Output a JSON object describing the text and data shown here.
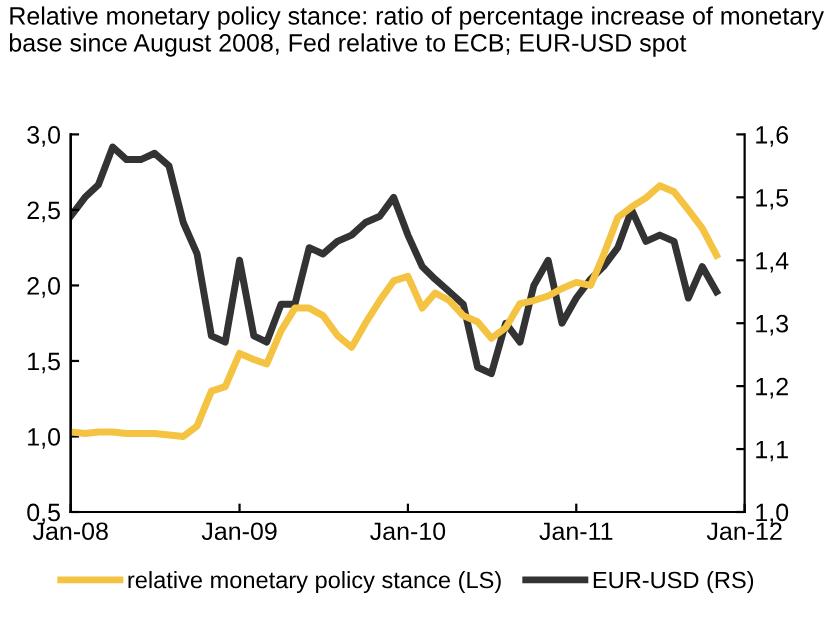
{
  "chart_data": {
    "type": "line",
    "title": "Relative monetary policy stance: ratio of percentage increase of monetary base since August 2008, Fed relative to ECB; EUR-USD spot",
    "x": [
      "2008-01",
      "2008-02",
      "2008-03",
      "2008-04",
      "2008-05",
      "2008-06",
      "2008-07",
      "2008-08",
      "2008-09",
      "2008-10",
      "2008-11",
      "2008-12",
      "2009-01",
      "2009-02",
      "2009-03",
      "2009-04",
      "2009-05",
      "2009-06",
      "2009-07",
      "2009-08",
      "2009-09",
      "2009-10",
      "2009-11",
      "2009-12",
      "2010-01",
      "2010-02",
      "2010-03",
      "2010-04",
      "2010-05",
      "2010-06",
      "2010-07",
      "2010-08",
      "2010-09",
      "2010-10",
      "2010-11",
      "2010-12",
      "2011-01",
      "2011-02",
      "2011-03",
      "2011-04",
      "2011-05",
      "2011-06",
      "2011-07",
      "2011-08",
      "2011-09",
      "2011-10",
      "2011-11"
    ],
    "series": [
      {
        "name": "relative monetary policy stance (LS)",
        "color": "#f5c342",
        "values": [
          1.03,
          1.02,
          1.03,
          1.03,
          1.02,
          1.02,
          1.02,
          1.01,
          1.0,
          1.07,
          1.3,
          1.33,
          1.55,
          1.51,
          1.48,
          1.7,
          1.85,
          1.85,
          1.8,
          1.67,
          1.59,
          1.75,
          1.9,
          2.03,
          2.06,
          1.85,
          1.95,
          1.9,
          1.8,
          1.76,
          1.65,
          1.72,
          1.88,
          1.9,
          1.93,
          1.98,
          2.02,
          2.0,
          2.2,
          2.45,
          2.52,
          2.58,
          2.66,
          2.62,
          2.5,
          2.38,
          2.2
        ]
      },
      {
        "name": "EUR-USD (RS)",
        "color": "#333333",
        "axis": "y2",
        "values": [
          1.47,
          1.5,
          1.52,
          1.58,
          1.56,
          1.56,
          1.57,
          1.55,
          1.46,
          1.41,
          1.28,
          1.27,
          1.4,
          1.28,
          1.27,
          1.33,
          1.33,
          1.42,
          1.41,
          1.43,
          1.44,
          1.46,
          1.47,
          1.5,
          1.44,
          1.39,
          1.37,
          1.35,
          1.33,
          1.23,
          1.22,
          1.3,
          1.27,
          1.36,
          1.4,
          1.3,
          1.34,
          1.37,
          1.39,
          1.42,
          1.48,
          1.43,
          1.44,
          1.43,
          1.34,
          1.39,
          1.35
        ]
      }
    ],
    "xlim": [
      "2008-01",
      "2012-01"
    ],
    "xticks": [
      {
        "value": "2008-01",
        "label": "Jan-08"
      },
      {
        "value": "2009-01",
        "label": "Jan-09"
      },
      {
        "value": "2010-01",
        "label": "Jan-10"
      },
      {
        "value": "2011-01",
        "label": "Jan-11"
      },
      {
        "value": "2012-01",
        "label": "Jan-12"
      }
    ],
    "ylim": [
      0.5,
      3.0
    ],
    "yticks": [
      {
        "value": 0.5,
        "label": "0,5"
      },
      {
        "value": 1.0,
        "label": "1,0"
      },
      {
        "value": 1.5,
        "label": "1,5"
      },
      {
        "value": 2.0,
        "label": "2,0"
      },
      {
        "value": 2.5,
        "label": "2,5"
      },
      {
        "value": 3.0,
        "label": "3,0"
      }
    ],
    "y2lim": [
      1.0,
      1.6
    ],
    "y2ticks": [
      {
        "value": 1.0,
        "label": "1,0"
      },
      {
        "value": 1.1,
        "label": "1,1"
      },
      {
        "value": 1.2,
        "label": "1,2"
      },
      {
        "value": 1.3,
        "label": "1,3"
      },
      {
        "value": 1.4,
        "label": "1,4"
      },
      {
        "value": 1.5,
        "label": "1,5"
      },
      {
        "value": 1.6,
        "label": "1,6"
      }
    ],
    "legend": "bottom",
    "line_style": "solid"
  }
}
